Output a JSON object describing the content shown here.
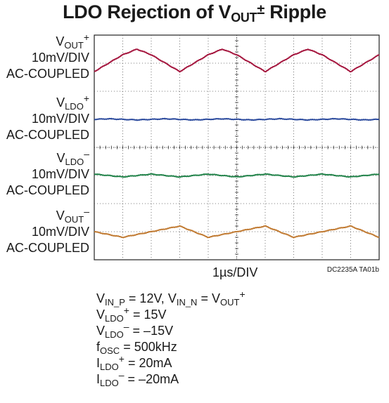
{
  "title": {
    "main": "LDO Rejection of V",
    "sub": "OUT",
    "pm": "±",
    "tail": " Ripple"
  },
  "channels": [
    {
      "sym": "V",
      "sub": "OUT",
      "sup": "+",
      "scale": "10mV/DIV",
      "coupling": "AC-COUPLED",
      "color": "#a5173f"
    },
    {
      "sym": "V",
      "sub": "LDO",
      "sup": "+",
      "scale": "10mV/DIV",
      "coupling": "AC-COUPLED",
      "color": "#2c4b9e"
    },
    {
      "sym": "V",
      "sub": "LDO",
      "sup": "–",
      "scale": "10mV/DIV",
      "coupling": "AC-COUPLED",
      "color": "#22834a"
    },
    {
      "sym": "V",
      "sub": "OUT",
      "sup": "–",
      "scale": "10mV/DIV",
      "coupling": "AC-COUPLED",
      "color": "#c17b33"
    }
  ],
  "x_axis_label": "1µs/DIV",
  "figure_ref": "DC2235A TA01b",
  "conditions": {
    "vin": {
      "a": "V",
      "a_sub": "IN_P",
      "a_val": " = 12V, ",
      "b": "V",
      "b_sub": "IN_N",
      "b_mid": " = V",
      "b_sub2": "OUT",
      "b_sup": "+"
    },
    "vldo_p": {
      "sym": "V",
      "sub": "LDO",
      "sup": "+",
      "val": " = 15V"
    },
    "vldo_n": {
      "sym": "V",
      "sub": "LDO",
      "sup": "–",
      "val": " = –15V"
    },
    "fosc": {
      "sym": "f",
      "sub": "OSC",
      "val": " = 500kHz"
    },
    "ildo_p": {
      "sym": "I",
      "sub": "LDO",
      "sup": "+",
      "val": " = 20mA"
    },
    "ildo_n": {
      "sym": "I",
      "sub": "LDO",
      "sup": "–",
      "val": " = –20mA"
    }
  },
  "chart_data": {
    "type": "line",
    "x_unit": "µs",
    "x_per_div": 1,
    "y_per_div_mV": 10,
    "xlim": [
      0,
      10
    ],
    "divisions": {
      "x": 10,
      "y": 8
    },
    "grid": true,
    "x": [
      0,
      0.5,
      1.0,
      1.5,
      2.0,
      2.5,
      3.0,
      3.5,
      4.0,
      4.5,
      5.0,
      5.5,
      6.0,
      6.5,
      7.0,
      7.5,
      8.0,
      8.5,
      9.0,
      9.5,
      10.0
    ],
    "series": [
      {
        "label": "V_OUT+",
        "offset_div": 7.0,
        "values": [
          -3,
          0,
          3,
          5,
          3,
          0,
          -3,
          0,
          3,
          5,
          3,
          0,
          -3,
          0,
          3,
          5,
          3,
          0,
          -3,
          0,
          3
        ]
      },
      {
        "label": "V_LDO+",
        "offset_div": 5.0,
        "values": [
          0,
          0.2,
          0,
          -0.2,
          0,
          0.2,
          0,
          -0.2,
          0,
          0.2,
          0,
          -0.2,
          0,
          0.2,
          0,
          -0.2,
          0,
          0.2,
          0,
          -0.2,
          0
        ]
      },
      {
        "label": "V_LDO-",
        "offset_div": 3.0,
        "values": [
          0.5,
          0,
          -0.5,
          0,
          0.5,
          0,
          -0.5,
          0,
          0.5,
          0,
          -0.5,
          0,
          0.5,
          0,
          -0.5,
          0,
          0.5,
          0,
          -0.5,
          0,
          0.5
        ]
      },
      {
        "label": "V_OUT-",
        "offset_div": 1.0,
        "values": [
          0,
          -1,
          -2,
          -1,
          0,
          1,
          2,
          0,
          -2,
          -1,
          0,
          1,
          2,
          0,
          -2,
          -1,
          0,
          1,
          2,
          0,
          -2
        ]
      }
    ]
  }
}
